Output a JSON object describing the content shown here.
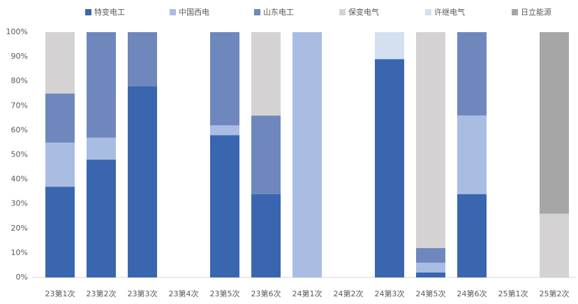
{
  "chart_data": {
    "type": "bar",
    "stacked": true,
    "categories": [
      "23第1次",
      "23第2次",
      "23第3次",
      "23第4次",
      "23第5次",
      "23第6次",
      "24第1次",
      "24第2次",
      "24第3次",
      "24第5次",
      "24第6次",
      "25第1次",
      "25第2次"
    ],
    "series": [
      {
        "name": "特变电工",
        "color": "#3a66b0",
        "values": [
          37,
          48,
          78,
          0,
          58,
          34,
          0,
          0,
          89,
          2,
          34,
          0,
          0
        ]
      },
      {
        "name": "中国西电",
        "color": "#a9bde3",
        "values": [
          18,
          9,
          0,
          0,
          4,
          0,
          100,
          0,
          0,
          4,
          32,
          0,
          0
        ]
      },
      {
        "name": "山东电工",
        "color": "#6e88bd",
        "values": [
          20,
          43,
          22,
          0,
          38,
          32,
          0,
          0,
          0,
          6,
          34,
          0,
          0
        ]
      },
      {
        "name": "保变电气",
        "color": "#d4d2d2",
        "values": [
          25,
          0,
          0,
          0,
          0,
          34,
          0,
          0,
          0,
          88,
          0,
          0,
          26
        ]
      },
      {
        "name": "许继电气",
        "color": "#d4dff0",
        "values": [
          0,
          0,
          0,
          0,
          0,
          0,
          0,
          0,
          11,
          0,
          0,
          0,
          0
        ]
      },
      {
        "name": "日立能源",
        "color": "#a6a6a6",
        "values": [
          0,
          0,
          0,
          0,
          0,
          0,
          0,
          0,
          0,
          0,
          0,
          0,
          74
        ]
      }
    ],
    "ylim": [
      0,
      100
    ],
    "yticks": [
      {
        "value": 0,
        "label": "0%"
      },
      {
        "value": 10,
        "label": "10%"
      },
      {
        "value": 20,
        "label": "20%"
      },
      {
        "value": 30,
        "label": "30%"
      },
      {
        "value": 40,
        "label": "40%"
      },
      {
        "value": 50,
        "label": "50%"
      },
      {
        "value": 60,
        "label": "60%"
      },
      {
        "value": 70,
        "label": "70%"
      },
      {
        "value": 80,
        "label": "80%"
      },
      {
        "value": 90,
        "label": "90%"
      },
      {
        "value": 100,
        "label": "100%"
      }
    ],
    "grid": false,
    "legend": "top"
  }
}
